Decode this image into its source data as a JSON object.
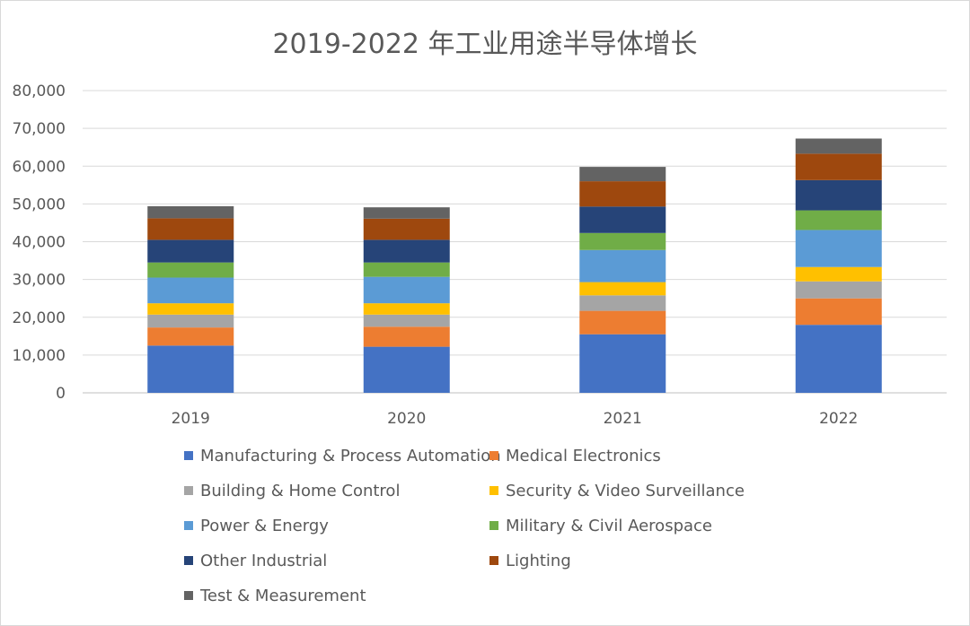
{
  "chart_data": {
    "type": "bar",
    "stacked": true,
    "title": "2019-2022 年工业用途半导体增长",
    "xlabel": "",
    "ylabel": "",
    "ylim": [
      0,
      80000
    ],
    "yticks": [
      0,
      10000,
      20000,
      30000,
      40000,
      50000,
      60000,
      70000,
      80000
    ],
    "ytick_labels": [
      "0",
      "10,000",
      "20,000",
      "30,000",
      "40,000",
      "50,000",
      "60,000",
      "70,000",
      "80,000"
    ],
    "grid": true,
    "legend_position": "bottom",
    "categories": [
      "2019",
      "2020",
      "2021",
      "2022"
    ],
    "series": [
      {
        "name": "Manufacturing & Process Automation",
        "color": "#4472c4",
        "values": [
          12500,
          12200,
          15500,
          18000
        ]
      },
      {
        "name": "Medical Electronics",
        "color": "#ed7d31",
        "values": [
          4800,
          5300,
          6200,
          7000
        ]
      },
      {
        "name": "Building & Home Control",
        "color": "#a5a5a5",
        "values": [
          3400,
          3200,
          4100,
          4500
        ]
      },
      {
        "name": "Security & Video Surveillance",
        "color": "#ffc000",
        "values": [
          3000,
          3000,
          3500,
          3800
        ]
      },
      {
        "name": "Power & Energy",
        "color": "#5b9bd5",
        "values": [
          6800,
          7000,
          8500,
          9800
        ]
      },
      {
        "name": "Military & Civil Aerospace",
        "color": "#70ad47",
        "values": [
          4000,
          3800,
          4500,
          5200
        ]
      },
      {
        "name": "Other Industrial",
        "color": "#264478",
        "values": [
          6000,
          6000,
          7000,
          8000
        ]
      },
      {
        "name": "Lighting",
        "color": "#9e480e",
        "values": [
          5700,
          5600,
          6700,
          7000
        ]
      },
      {
        "name": "Test & Measurement",
        "color": "#636363",
        "values": [
          3200,
          3000,
          3800,
          4000
        ]
      }
    ]
  }
}
